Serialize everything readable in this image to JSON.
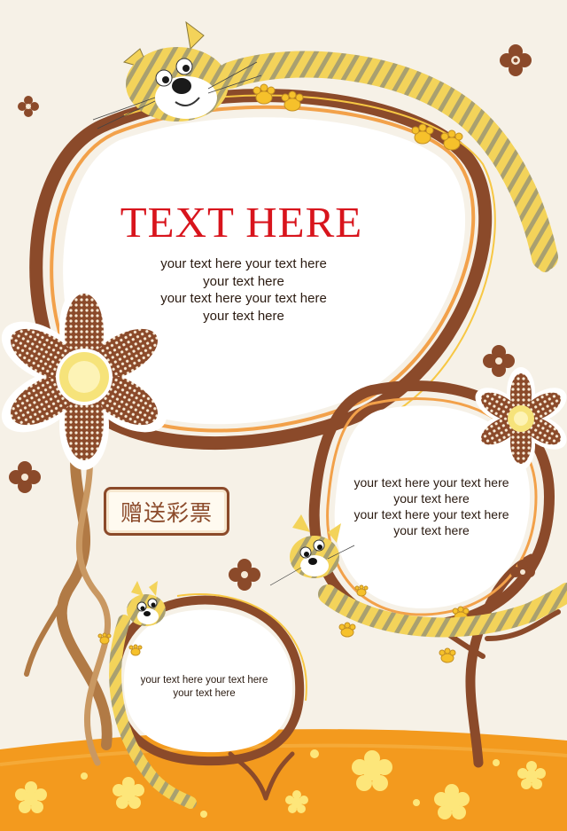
{
  "title": "TEXT HERE",
  "main_bubble": {
    "lines": [
      "your text here   your text here",
      "your text here",
      "your text here   your text here",
      "your text here"
    ]
  },
  "right_bubble": {
    "lines": [
      "your text here   your text here",
      "your text here",
      "your text here   your text here",
      "your text here"
    ]
  },
  "small_bubble": {
    "lines": [
      "your text here   your text here",
      "your text here"
    ]
  },
  "badge": {
    "label": "赠送彩票"
  },
  "colors": {
    "background": "#f6f1e7",
    "frame_brown": "#8b4a2a",
    "tree_brown": "#a0683a",
    "ground_orange": "#f39a1e",
    "title_red": "#d8141c",
    "cat_yellow": "#f3d35a"
  }
}
